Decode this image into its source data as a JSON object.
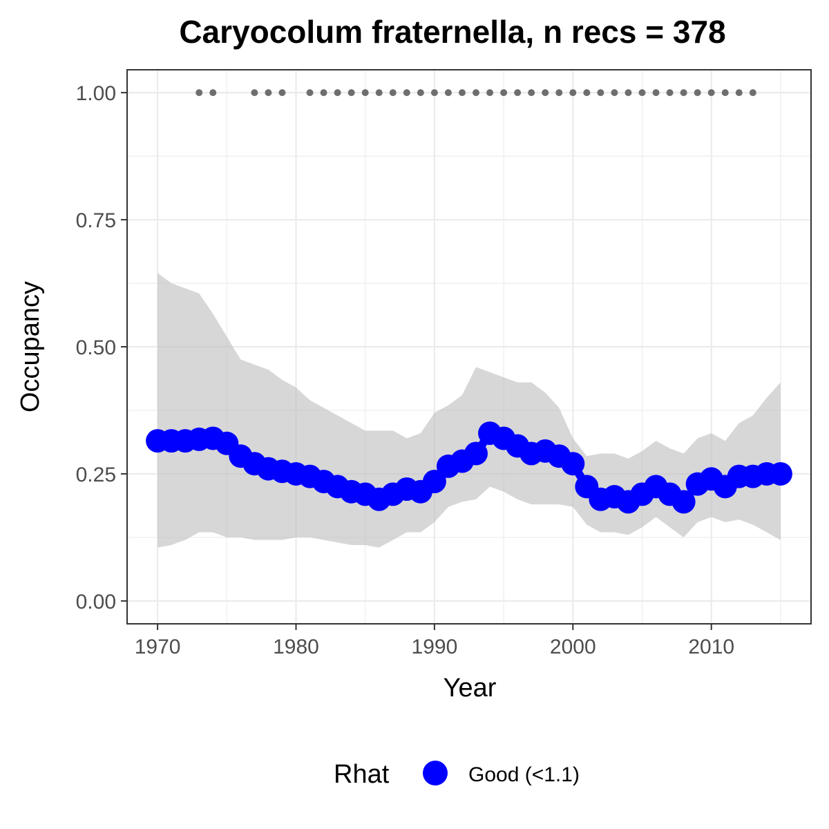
{
  "chart_data": {
    "type": "line",
    "title": "Caryocolum fraternella, n recs = 378",
    "xlabel": "Year",
    "ylabel": "Occupancy",
    "xlim": [
      1967.8,
      2017.2
    ],
    "ylim": [
      -0.045,
      1.045
    ],
    "x_ticks": [
      1970,
      1980,
      1990,
      2000,
      2010
    ],
    "x_tick_labels": [
      "1970",
      "1980",
      "1990",
      "2000",
      "2010"
    ],
    "y_ticks": [
      0,
      0.25,
      0.5,
      0.75,
      1.0
    ],
    "y_tick_labels": [
      "0.00",
      "0.25",
      "0.50",
      "0.75",
      "1.00"
    ],
    "grid": true,
    "legend_position": "bottom",
    "colors": {
      "series": "#0000ff",
      "ribbon": "#cccccc",
      "records": "#6e6e6e",
      "grid": "#ebebeb",
      "panel_border": "#333333"
    },
    "x": [
      1970,
      1971,
      1972,
      1973,
      1974,
      1975,
      1976,
      1977,
      1978,
      1979,
      1980,
      1981,
      1982,
      1983,
      1984,
      1985,
      1986,
      1987,
      1988,
      1989,
      1990,
      1991,
      1992,
      1993,
      1994,
      1995,
      1996,
      1997,
      1998,
      1999,
      2000,
      2001,
      2002,
      2003,
      2004,
      2005,
      2006,
      2007,
      2008,
      2009,
      2010,
      2011,
      2012,
      2013,
      2014,
      2015
    ],
    "series": [
      {
        "name": "Good (<1.1)",
        "values": [
          0.315,
          0.315,
          0.315,
          0.318,
          0.32,
          0.31,
          0.285,
          0.27,
          0.26,
          0.255,
          0.25,
          0.245,
          0.235,
          0.225,
          0.215,
          0.21,
          0.2,
          0.21,
          0.22,
          0.215,
          0.235,
          0.265,
          0.275,
          0.29,
          0.33,
          0.32,
          0.305,
          0.29,
          0.295,
          0.285,
          0.27,
          0.225,
          0.2,
          0.205,
          0.195,
          0.21,
          0.225,
          0.21,
          0.195,
          0.23,
          0.24,
          0.225,
          0.245,
          0.245,
          0.25,
          0.25
        ]
      }
    ],
    "ribbon": {
      "lower": [
        0.105,
        0.11,
        0.12,
        0.135,
        0.135,
        0.125,
        0.125,
        0.12,
        0.12,
        0.12,
        0.125,
        0.125,
        0.12,
        0.115,
        0.11,
        0.11,
        0.105,
        0.12,
        0.135,
        0.135,
        0.155,
        0.185,
        0.195,
        0.2,
        0.225,
        0.215,
        0.2,
        0.19,
        0.19,
        0.19,
        0.185,
        0.15,
        0.135,
        0.135,
        0.13,
        0.145,
        0.165,
        0.145,
        0.125,
        0.155,
        0.165,
        0.155,
        0.16,
        0.15,
        0.135,
        0.12
      ],
      "upper": [
        0.645,
        0.625,
        0.615,
        0.605,
        0.565,
        0.52,
        0.475,
        0.465,
        0.455,
        0.435,
        0.42,
        0.395,
        0.38,
        0.365,
        0.35,
        0.335,
        0.335,
        0.335,
        0.32,
        0.33,
        0.37,
        0.385,
        0.405,
        0.46,
        0.45,
        0.44,
        0.43,
        0.43,
        0.41,
        0.38,
        0.32,
        0.285,
        0.29,
        0.29,
        0.28,
        0.295,
        0.315,
        0.3,
        0.29,
        0.32,
        0.33,
        0.315,
        0.35,
        0.365,
        0.4,
        0.43
      ]
    },
    "record_years": [
      1973,
      1974,
      1977,
      1978,
      1979,
      1981,
      1982,
      1983,
      1984,
      1985,
      1986,
      1987,
      1988,
      1989,
      1990,
      1991,
      1992,
      1993,
      1994,
      1995,
      1996,
      1997,
      1998,
      1999,
      2000,
      2001,
      2002,
      2003,
      2004,
      2005,
      2006,
      2007,
      2008,
      2009,
      2010,
      2011,
      2012,
      2013
    ],
    "record_value": 1.0,
    "legend": {
      "title": "Rhat",
      "entries": [
        {
          "label": "Good (<1.1)",
          "color": "#0000ff"
        }
      ]
    }
  }
}
